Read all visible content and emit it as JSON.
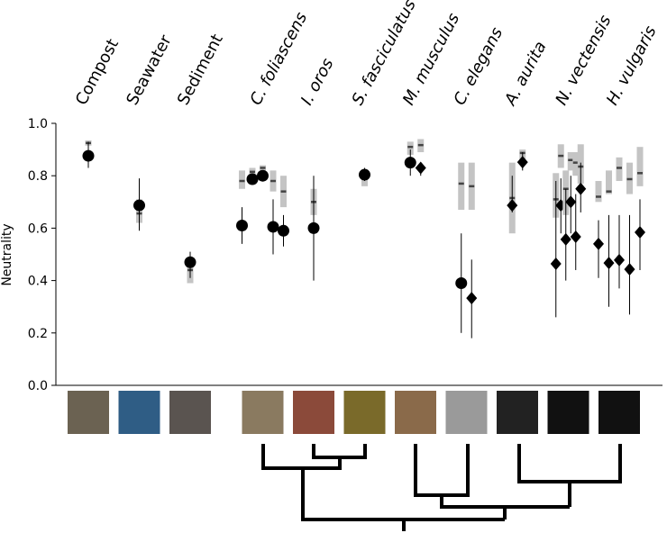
{
  "chart_data": {
    "type": "scatter",
    "ylabel": "Neutrality",
    "ylim": [
      0,
      1
    ],
    "yticks": [
      {
        "value": 0,
        "label": "0.0"
      },
      {
        "value": 0.2,
        "label": "0.2"
      },
      {
        "value": 0.4,
        "label": "0.4"
      },
      {
        "value": 0.6,
        "label": "0.6"
      },
      {
        "value": 0.8,
        "label": "0.8"
      },
      {
        "value": 1,
        "label": "1.0"
      }
    ],
    "categories": [
      "Compost",
      "Seawater",
      "Sediment",
      "C. foliascens",
      "I. oros",
      "S. fasciculatus",
      "M. musculus",
      "C. elegans",
      "A. aurita",
      "N. vectensis",
      "H. vulgaris"
    ],
    "groups": [
      [
        {
          "marker": "circle",
          "value": 0.876,
          "err": [
            0.83,
            0.93
          ],
          "band": [
            0.915,
            0.935
          ],
          "band_mid": 0.925
        }
      ],
      [
        {
          "marker": "circle",
          "value": 0.687,
          "err": [
            0.59,
            0.79
          ],
          "band": [
            0.62,
            0.71
          ],
          "band_mid": 0.656
        }
      ],
      [
        {
          "marker": "circle",
          "value": 0.47,
          "err": [
            0.41,
            0.51
          ],
          "band": [
            0.39,
            0.47
          ],
          "band_mid": 0.44
        }
      ],
      [
        {
          "marker": "circle",
          "value": 0.61,
          "err": [
            0.54,
            0.68
          ],
          "band": [
            0.75,
            0.82
          ],
          "band_mid": 0.78
        },
        {
          "marker": "circle",
          "value": 0.787,
          "err": [
            0.77,
            0.8
          ],
          "band": [
            0.79,
            0.83
          ],
          "band_mid": 0.815
        },
        {
          "marker": "circle",
          "value": 0.8,
          "err": [
            0.78,
            0.82
          ],
          "band": [
            0.81,
            0.84
          ],
          "band_mid": 0.83
        },
        {
          "marker": "circle",
          "value": 0.605,
          "err": [
            0.5,
            0.71
          ],
          "band": [
            0.74,
            0.82
          ],
          "band_mid": 0.78
        },
        {
          "marker": "circle",
          "value": 0.59,
          "err": [
            0.53,
            0.65
          ],
          "band": [
            0.68,
            0.8
          ],
          "band_mid": 0.74
        }
      ],
      [
        {
          "marker": "circle",
          "value": 0.6,
          "err": [
            0.4,
            0.8
          ],
          "band": [
            0.65,
            0.75
          ],
          "band_mid": 0.7
        }
      ],
      [
        {
          "marker": "circle",
          "value": 0.804,
          "err": [
            0.78,
            0.83
          ],
          "band": [
            0.76,
            0.82
          ],
          "band_mid": 0.8
        }
      ],
      [
        {
          "marker": "circle",
          "value": 0.85,
          "err": [
            0.8,
            0.9
          ],
          "band": [
            0.88,
            0.93
          ],
          "band_mid": 0.91
        },
        {
          "marker": "diamond",
          "value": 0.83,
          "err": [
            0.8,
            0.85
          ],
          "band": [
            0.89,
            0.94
          ],
          "band_mid": 0.917
        }
      ],
      [
        {
          "marker": "circle",
          "value": 0.39,
          "err": [
            0.2,
            0.58
          ],
          "band": [
            0.67,
            0.85
          ],
          "band_mid": 0.77
        },
        {
          "marker": "diamond",
          "value": 0.333,
          "err": [
            0.18,
            0.48
          ],
          "band": [
            0.67,
            0.85
          ],
          "band_mid": 0.76
        }
      ],
      [
        {
          "marker": "diamond",
          "value": 0.687,
          "err": [
            0.66,
            0.8
          ],
          "band": [
            0.58,
            0.85
          ],
          "band_mid": 0.715
        },
        {
          "marker": "diamond",
          "value": 0.852,
          "err": [
            0.82,
            0.89
          ],
          "band": [
            0.85,
            0.9
          ],
          "band_mid": 0.887
        }
      ],
      [
        {
          "marker": "diamond",
          "value": 0.464,
          "err": [
            0.26,
            0.78
          ],
          "band": [
            0.64,
            0.81
          ],
          "band_mid": 0.71
        },
        {
          "marker": "diamond",
          "value": 0.687,
          "err": [
            0.58,
            0.79
          ],
          "band": [
            0.83,
            0.92
          ],
          "band_mid": 0.876
        },
        {
          "marker": "diamond",
          "value": 0.557,
          "err": [
            0.4,
            0.75
          ],
          "band": [
            0.65,
            0.82
          ],
          "band_mid": 0.75
        },
        {
          "marker": "diamond",
          "value": 0.7,
          "err": [
            0.58,
            0.8
          ],
          "band": [
            0.82,
            0.89
          ],
          "band_mid": 0.86
        },
        {
          "marker": "diamond",
          "value": 0.567,
          "err": [
            0.44,
            0.73
          ],
          "band": [
            0.8,
            0.89
          ],
          "band_mid": 0.85
        },
        {
          "marker": "diamond",
          "value": 0.75,
          "err": [
            0.66,
            0.85
          ],
          "band": [
            0.77,
            0.92
          ],
          "band_mid": 0.835
        }
      ],
      [
        {
          "marker": "diamond",
          "value": 0.54,
          "err": [
            0.41,
            0.63
          ],
          "band": [
            0.7,
            0.78
          ],
          "band_mid": 0.72
        },
        {
          "marker": "diamond",
          "value": 0.467,
          "err": [
            0.3,
            0.65
          ],
          "band": [
            0.73,
            0.82
          ],
          "band_mid": 0.74
        },
        {
          "marker": "diamond",
          "value": 0.478,
          "err": [
            0.37,
            0.65
          ],
          "band": [
            0.78,
            0.87
          ],
          "band_mid": 0.83
        },
        {
          "marker": "diamond",
          "value": 0.443,
          "err": [
            0.27,
            0.65
          ],
          "band": [
            0.73,
            0.85
          ],
          "band_mid": 0.787
        },
        {
          "marker": "diamond",
          "value": 0.584,
          "err": [
            0.44,
            0.71
          ],
          "band": [
            0.76,
            0.91
          ],
          "band_mid": 0.81
        }
      ]
    ]
  }
}
